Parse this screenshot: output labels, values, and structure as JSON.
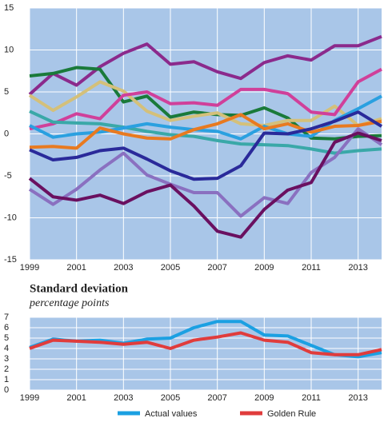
{
  "chart_data": [
    {
      "type": "line",
      "x": [
        1999,
        2000,
        2001,
        2002,
        2003,
        2004,
        2005,
        2006,
        2007,
        2008,
        2009,
        2010,
        2011,
        2012,
        2013,
        2014
      ],
      "xlim": [
        1999,
        2014
      ],
      "xticks": [
        1999,
        2001,
        2003,
        2005,
        2007,
        2009,
        2011,
        2013
      ],
      "ylim": [
        -15,
        15
      ],
      "yticks": [
        -15,
        -10,
        -5,
        0,
        5,
        10,
        15
      ],
      "grid": true,
      "series": [
        {
          "color": "#8b2a8c",
          "values": [
            4.7,
            7.2,
            5.8,
            8,
            9.6,
            10.7,
            8.3,
            8.6,
            7.4,
            6.6,
            8.5,
            9.3,
            8.8,
            10.5,
            10.5,
            11.6
          ]
        },
        {
          "color": "#1a7a3a",
          "values": [
            6.9,
            7.2,
            7.9,
            7.7,
            3.8,
            4.5,
            2.0,
            2.6,
            2.3,
            2.2,
            3.1,
            1.9,
            -0.5,
            -0.6,
            -0.3,
            -0.2
          ]
        },
        {
          "color": "#d4c07a",
          "values": [
            4.6,
            2.8,
            4.4,
            6.2,
            5.1,
            2.7,
            1.6,
            2.1,
            2.5,
            1.2,
            1.0,
            1.6,
            1.6,
            3.3,
            1.0,
            1.8
          ]
        },
        {
          "color": "#d0409a",
          "values": [
            0.6,
            1.2,
            2.4,
            1.8,
            4.6,
            5.0,
            3.6,
            3.7,
            3.4,
            5.3,
            5.3,
            4.8,
            2.6,
            2.3,
            6.2,
            7.7
          ]
        },
        {
          "color": "#3aa8a8",
          "values": [
            2.7,
            1.4,
            1.3,
            1.2,
            0.8,
            0.3,
            -0.1,
            -0.3,
            -0.8,
            -1.2,
            -1.3,
            -1.4,
            -1.8,
            -2.3,
            -2.0,
            -1.8
          ]
        },
        {
          "color": "#2aa0e0",
          "values": [
            1.0,
            -0.4,
            0.0,
            0.2,
            0.7,
            1.2,
            0.8,
            0.5,
            0.3,
            -0.6,
            0.9,
            0.0,
            -0.3,
            1.6,
            3.0,
            4.5
          ]
        },
        {
          "color": "#e87a20",
          "values": [
            -1.6,
            -1.5,
            -1.7,
            0.7,
            0.0,
            -0.5,
            -0.6,
            0.5,
            1.2,
            2.3,
            0.6,
            1.2,
            0.2,
            0.9,
            1.0,
            1.5
          ]
        },
        {
          "color": "#2a2a9a",
          "values": [
            -1.9,
            -3.1,
            -2.8,
            -2.0,
            -1.7,
            -3.0,
            -4.4,
            -5.4,
            -5.3,
            -3.8,
            0.1,
            0.0,
            0.6,
            1.5,
            2.6,
            0.9
          ]
        },
        {
          "color": "#8a70c0",
          "values": [
            -6.6,
            -8.4,
            -6.6,
            -4.3,
            -2.3,
            -4.9,
            -6.0,
            -7.0,
            -7.0,
            -9.8,
            -7.6,
            -8.3,
            -4.6,
            -2.8,
            0.6,
            -1.3
          ]
        },
        {
          "color": "#6a1060",
          "values": [
            -5.3,
            -7.5,
            -7.9,
            -7.3,
            -8.3,
            -6.9,
            -6.1,
            -8.6,
            -11.6,
            -12.3,
            -9.0,
            -6.7,
            -5.8,
            -1.0,
            0.1,
            -0.8
          ]
        }
      ]
    },
    {
      "type": "line",
      "title": "Standard deviation",
      "subtitle": "percentage points",
      "x": [
        1999,
        2000,
        2001,
        2002,
        2003,
        2004,
        2005,
        2006,
        2007,
        2008,
        2009,
        2010,
        2011,
        2012,
        2013,
        2014
      ],
      "xlim": [
        1999,
        2014
      ],
      "xticks": [
        1999,
        2001,
        2003,
        2005,
        2007,
        2009,
        2011,
        2013
      ],
      "ylim": [
        0,
        7
      ],
      "yticks": [
        0,
        1,
        2,
        3,
        4,
        5,
        6,
        7
      ],
      "grid": true,
      "series": [
        {
          "name": "Actual values",
          "color": "#1ba0e2",
          "values": [
            4.1,
            4.9,
            4.7,
            4.8,
            4.5,
            4.9,
            5.0,
            6.0,
            6.6,
            6.6,
            5.3,
            5.2,
            4.3,
            3.4,
            3.2,
            3.6
          ]
        },
        {
          "name": "Golden Rule",
          "color": "#e03c3c",
          "values": [
            4.0,
            4.8,
            4.7,
            4.6,
            4.4,
            4.6,
            4.0,
            4.8,
            5.1,
            5.5,
            4.8,
            4.6,
            3.6,
            3.4,
            3.4,
            3.9
          ]
        }
      ]
    }
  ]
}
